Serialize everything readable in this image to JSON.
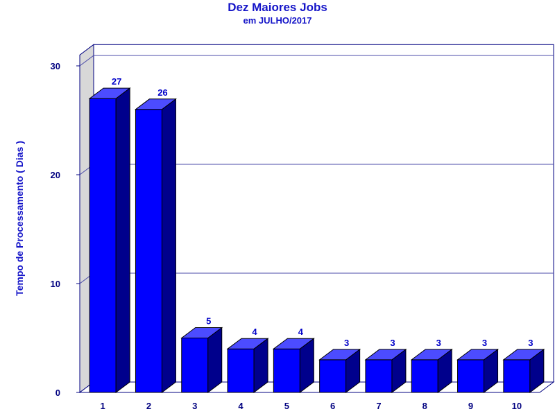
{
  "chart_data": {
    "type": "bar",
    "title": "Dez Maiores Jobs",
    "subtitle": "em JULHO/2017",
    "ylabel": "Tempo de Processamento ( Dias )",
    "xlabel": "",
    "categories": [
      "1",
      "2",
      "3",
      "4",
      "5",
      "6",
      "7",
      "8",
      "9",
      "10"
    ],
    "values": [
      27,
      26,
      5,
      4,
      4,
      3,
      3,
      3,
      3,
      3
    ],
    "ylim": [
      0,
      30
    ],
    "yticks": [
      0,
      10,
      20,
      30
    ],
    "grid": true,
    "style": "3d",
    "colors": {
      "bar_front": "#0000ff",
      "bar_side": "#00008c",
      "bar_top": "#4c4cff",
      "gridline": "#4b4ba8",
      "wall": "#d8d8d8",
      "text": "#1414c8"
    }
  }
}
